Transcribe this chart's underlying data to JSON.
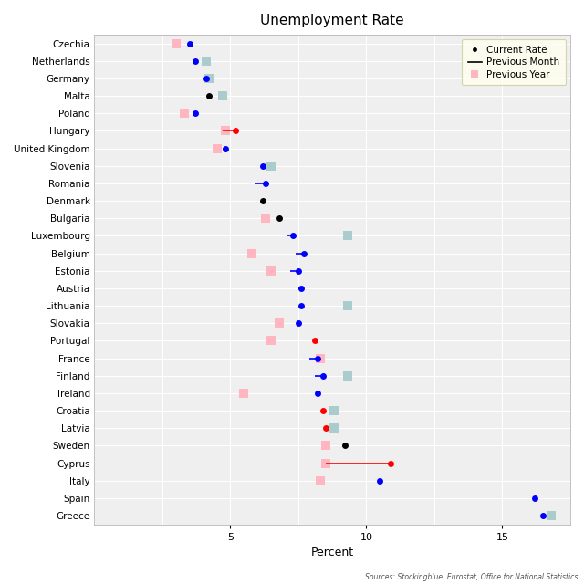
{
  "title": "Unemployment Rate",
  "xlabel": "Percent",
  "source": "Sources: Stockingblue, Eurostat, Office for National Statistics",
  "countries": [
    "Czechia",
    "Netherlands",
    "Germany",
    "Malta",
    "Poland",
    "Hungary",
    "United Kingdom",
    "Slovenia",
    "Romania",
    "Denmark",
    "Bulgaria",
    "Luxembourg",
    "Belgium",
    "Estonia",
    "Austria",
    "Lithuania",
    "Slovakia",
    "Portugal",
    "France",
    "Finland",
    "Ireland",
    "Croatia",
    "Latvia",
    "Sweden",
    "Cyprus",
    "Italy",
    "Spain",
    "Greece"
  ],
  "current_rate": [
    3.5,
    3.7,
    4.1,
    4.2,
    3.7,
    5.2,
    4.8,
    6.2,
    6.3,
    6.2,
    6.8,
    7.3,
    7.7,
    7.5,
    7.6,
    7.6,
    7.5,
    8.1,
    8.2,
    8.4,
    8.2,
    8.4,
    8.5,
    9.2,
    10.9,
    10.5,
    16.2,
    16.5
  ],
  "prev_month_from": [
    null,
    null,
    null,
    null,
    null,
    4.7,
    4.7,
    null,
    5.9,
    null,
    null,
    7.1,
    7.4,
    7.2,
    7.5,
    null,
    null,
    null,
    7.9,
    8.1,
    null,
    null,
    null,
    null,
    8.5,
    null,
    null,
    null
  ],
  "prev_year_pink": [
    3.0,
    null,
    null,
    null,
    3.3,
    4.8,
    4.5,
    null,
    null,
    null,
    6.3,
    null,
    5.8,
    6.5,
    null,
    null,
    6.8,
    6.5,
    8.3,
    null,
    5.5,
    null,
    null,
    8.5,
    8.5,
    8.3,
    null,
    null
  ],
  "prev_year_teal": [
    null,
    4.1,
    4.2,
    4.7,
    null,
    null,
    null,
    6.5,
    null,
    null,
    null,
    9.3,
    null,
    null,
    null,
    9.3,
    null,
    null,
    null,
    9.3,
    null,
    8.8,
    8.8,
    null,
    null,
    null,
    null,
    16.8
  ],
  "dot_colors": [
    "blue",
    "blue",
    "blue",
    "black",
    "blue",
    "red",
    "blue",
    "blue",
    "blue",
    "black",
    "black",
    "blue",
    "blue",
    "blue",
    "blue",
    "blue",
    "blue",
    "red",
    "blue",
    "blue",
    "blue",
    "red",
    "red",
    "black",
    "red",
    "blue",
    "blue",
    "blue"
  ],
  "xlim": [
    0,
    17.5
  ],
  "xticks": [
    5,
    10,
    15
  ],
  "bg_color": "#efefef",
  "grid_color": "white",
  "legend_bg": "#ffffee",
  "prev_year_teal_color": "#aacccc",
  "prev_year_pink_color": "#ffb6c1"
}
